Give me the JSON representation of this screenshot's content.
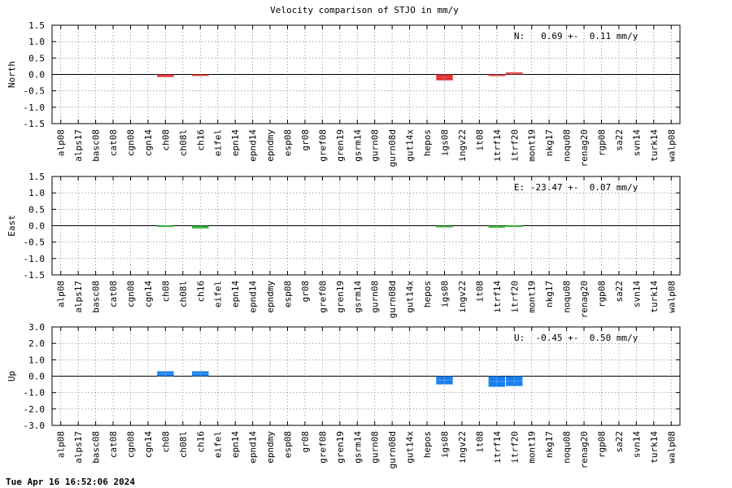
{
  "chart_data": {
    "type": "bar",
    "title": "Velocity comparison of STJO in mm/y",
    "categories": [
      "alp08",
      "alps17",
      "basc08",
      "cat08",
      "cgn08",
      "cgn14",
      "ch08",
      "ch08l",
      "ch16",
      "eifel",
      "epn14",
      "epnd14",
      "epndmy",
      "esp08",
      "gr08",
      "gref08",
      "gren19",
      "gsrm14",
      "gurn08",
      "gurn08d",
      "gut14x",
      "hepos",
      "igs08",
      "ingv22",
      "it08",
      "itrf14",
      "itrf20",
      "mont19",
      "nkg17",
      "noqu08",
      "renag20",
      "rgp08",
      "sa22",
      "svn14",
      "turk14",
      "walp08"
    ],
    "panels": [
      {
        "ylabel": "North",
        "ylim": [
          -1.5,
          1.5
        ],
        "yticks": [
          "1.5",
          "1.0",
          "0.5",
          "0.0",
          "-0.5",
          "-1.0",
          "-1.5"
        ],
        "ytick_values": [
          1.5,
          1.0,
          0.5,
          0.0,
          -0.5,
          -1.0,
          -1.5
        ],
        "annotation": "N:   0.69 +-  0.11 mm/y",
        "color": "#e03030",
        "values": [
          null,
          null,
          null,
          null,
          null,
          null,
          -0.08,
          null,
          -0.03,
          null,
          null,
          null,
          null,
          null,
          null,
          null,
          null,
          null,
          null,
          null,
          null,
          null,
          -0.18,
          null,
          null,
          -0.05,
          0.06,
          null,
          null,
          null,
          null,
          null,
          null,
          null,
          null,
          null
        ]
      },
      {
        "ylabel": "East",
        "ylim": [
          -1.5,
          1.5
        ],
        "yticks": [
          "1.5",
          "1.0",
          "0.5",
          "0.0",
          "-0.5",
          "-1.0",
          "-1.5"
        ],
        "ytick_values": [
          1.5,
          1.0,
          0.5,
          0.0,
          -0.5,
          -1.0,
          -1.5
        ],
        "annotation": "E: -23.47 +-  0.07 mm/y",
        "color": "#22aa22",
        "values": [
          null,
          null,
          null,
          null,
          null,
          null,
          0.01,
          null,
          -0.08,
          null,
          null,
          null,
          null,
          null,
          null,
          null,
          null,
          null,
          null,
          null,
          null,
          null,
          -0.03,
          null,
          null,
          -0.06,
          0.01,
          null,
          null,
          null,
          null,
          null,
          null,
          null,
          null,
          null
        ]
      },
      {
        "ylabel": "Up",
        "ylim": [
          -3.0,
          3.0
        ],
        "yticks": [
          "3.0",
          "2.0",
          "1.0",
          "0.0",
          "-1.0",
          "-2.0",
          "-3.0"
        ],
        "ytick_values": [
          3.0,
          2.0,
          1.0,
          0.0,
          -1.0,
          -2.0,
          -3.0
        ],
        "annotation": "U:  -0.45 +-  0.50 mm/y",
        "color": "#1a80ee",
        "values": [
          null,
          null,
          null,
          null,
          null,
          null,
          0.3,
          null,
          0.3,
          null,
          null,
          null,
          null,
          null,
          null,
          null,
          null,
          null,
          null,
          null,
          null,
          null,
          -0.5,
          null,
          null,
          -0.65,
          -0.6,
          null,
          null,
          null,
          null,
          null,
          null,
          null,
          null,
          null
        ]
      }
    ],
    "grid": true,
    "zero_line": true
  },
  "footer": {
    "timestamp": "Tue Apr 16 16:52:06 2024"
  }
}
